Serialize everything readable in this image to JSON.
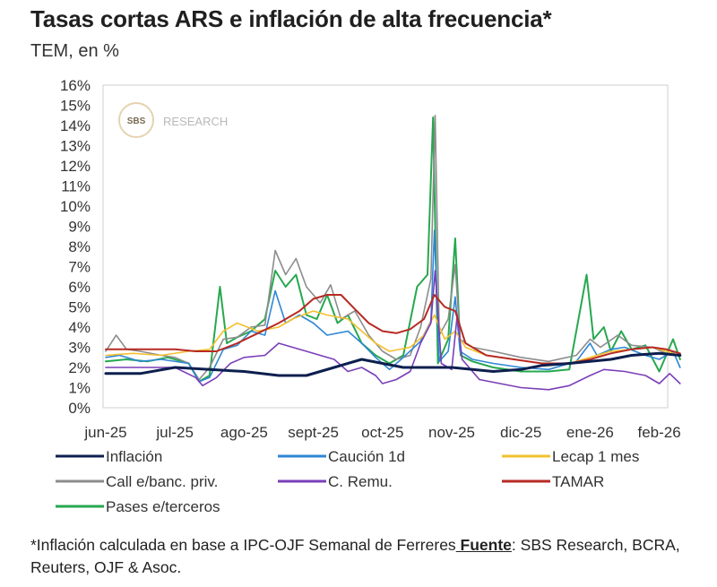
{
  "title": "Tasas cortas ARS e inflación de alta frecuencia*",
  "subtitle": "TEM, en %",
  "watermark": {
    "badge": "SBS",
    "text": "RESEARCH"
  },
  "footnote": {
    "text": "*Inflación calculada en base a IPC-OJF Semanal de Ferreres",
    "fuente_label": " Fuente",
    "sources": ": SBS Research, BCRA, Reuters, OJF & Asoc."
  },
  "chart_data": {
    "type": "line",
    "x_labels": [
      "jun-25",
      "jul-25",
      "ago-25",
      "sept-25",
      "oct-25",
      "nov-25",
      "dic-25",
      "ene-26",
      "feb-26"
    ],
    "y_ticks": [
      "0%",
      "1%",
      "2%",
      "3%",
      "4%",
      "5%",
      "6%",
      "7%",
      "8%",
      "9%",
      "10%",
      "11%",
      "12%",
      "13%",
      "14%",
      "15%",
      "16%"
    ],
    "ylim": [
      0,
      16
    ],
    "grid": false,
    "legend_position": "bottom",
    "series": [
      {
        "name": "Inflación",
        "color": "#0d1f4f",
        "width": 3,
        "points": [
          [
            0,
            1.7
          ],
          [
            0.5,
            1.7
          ],
          [
            1,
            2.0
          ],
          [
            1.5,
            1.9
          ],
          [
            2,
            1.8
          ],
          [
            2.5,
            1.6
          ],
          [
            2.9,
            1.6
          ],
          [
            3.3,
            2.0
          ],
          [
            3.7,
            2.4
          ],
          [
            4.0,
            2.2
          ],
          [
            4.3,
            2.0
          ],
          [
            4.5,
            2.0
          ],
          [
            5,
            2.0
          ],
          [
            5.3,
            1.9
          ],
          [
            5.6,
            1.8
          ],
          [
            6,
            1.9
          ],
          [
            6.3,
            2.1
          ],
          [
            6.7,
            2.2
          ],
          [
            7,
            2.3
          ],
          [
            7.3,
            2.4
          ],
          [
            7.6,
            2.6
          ],
          [
            8,
            2.7
          ],
          [
            8.3,
            2.6
          ]
        ]
      },
      {
        "name": "Caución 1d",
        "color": "#2e86d4",
        "width": 1.6,
        "points": [
          [
            0,
            2.5
          ],
          [
            0.2,
            2.6
          ],
          [
            0.5,
            2.3
          ],
          [
            0.8,
            2.4
          ],
          [
            1.2,
            2.2
          ],
          [
            1.35,
            1.3
          ],
          [
            1.5,
            1.5
          ],
          [
            1.7,
            2.9
          ],
          [
            1.9,
            3.1
          ],
          [
            2.1,
            3.8
          ],
          [
            2.3,
            3.6
          ],
          [
            2.45,
            5.8
          ],
          [
            2.6,
            4.2
          ],
          [
            2.8,
            4.6
          ],
          [
            3.0,
            4.2
          ],
          [
            3.2,
            3.6
          ],
          [
            3.5,
            3.8
          ],
          [
            3.7,
            3.2
          ],
          [
            3.9,
            2.5
          ],
          [
            4.1,
            1.9
          ],
          [
            4.3,
            2.5
          ],
          [
            4.55,
            3.3
          ],
          [
            4.7,
            4.3
          ],
          [
            4.75,
            8.8
          ],
          [
            4.82,
            2.3
          ],
          [
            4.95,
            2.8
          ],
          [
            5.05,
            5.5
          ],
          [
            5.12,
            2.8
          ],
          [
            5.3,
            2.4
          ],
          [
            5.6,
            2.2
          ],
          [
            6.0,
            2.0
          ],
          [
            6.4,
            1.9
          ],
          [
            6.8,
            2.3
          ],
          [
            7.0,
            3.2
          ],
          [
            7.1,
            2.6
          ],
          [
            7.3,
            2.9
          ],
          [
            7.5,
            3.0
          ],
          [
            7.8,
            2.6
          ],
          [
            8.0,
            2.4
          ],
          [
            8.2,
            2.8
          ],
          [
            8.3,
            2.0
          ]
        ]
      },
      {
        "name": "Lecap 1 mes",
        "color": "#f2c12e",
        "width": 1.6,
        "points": [
          [
            0,
            2.6
          ],
          [
            0.4,
            2.7
          ],
          [
            0.8,
            2.6
          ],
          [
            1.2,
            2.8
          ],
          [
            1.5,
            2.9
          ],
          [
            1.7,
            3.8
          ],
          [
            1.9,
            4.2
          ],
          [
            2.2,
            3.8
          ],
          [
            2.5,
            4.0
          ],
          [
            2.7,
            4.4
          ],
          [
            3.0,
            4.8
          ],
          [
            3.2,
            4.6
          ],
          [
            3.5,
            4.4
          ],
          [
            3.7,
            3.8
          ],
          [
            3.9,
            3.2
          ],
          [
            4.1,
            2.8
          ],
          [
            4.4,
            3.0
          ],
          [
            4.6,
            3.6
          ],
          [
            4.75,
            4.6
          ],
          [
            4.9,
            3.4
          ],
          [
            5.05,
            3.8
          ],
          [
            5.2,
            3.0
          ],
          [
            5.5,
            2.6
          ],
          [
            5.9,
            2.4
          ],
          [
            6.3,
            2.2
          ],
          [
            6.7,
            2.2
          ],
          [
            7.0,
            2.5
          ],
          [
            7.3,
            2.8
          ],
          [
            7.6,
            2.9
          ],
          [
            7.9,
            3.0
          ],
          [
            8.1,
            2.8
          ],
          [
            8.3,
            2.6
          ]
        ]
      },
      {
        "name": "Call e/banc. priv.",
        "color": "#8c8c8c",
        "width": 1.6,
        "points": [
          [
            0,
            2.8
          ],
          [
            0.15,
            3.6
          ],
          [
            0.3,
            2.9
          ],
          [
            0.5,
            2.8
          ],
          [
            0.8,
            2.6
          ],
          [
            1.0,
            2.5
          ],
          [
            1.2,
            2.2
          ],
          [
            1.35,
            1.4
          ],
          [
            1.5,
            2.0
          ],
          [
            1.7,
            3.4
          ],
          [
            1.9,
            3.5
          ],
          [
            2.1,
            4.0
          ],
          [
            2.3,
            4.1
          ],
          [
            2.45,
            7.8
          ],
          [
            2.6,
            6.6
          ],
          [
            2.75,
            7.4
          ],
          [
            2.9,
            6.0
          ],
          [
            3.1,
            5.2
          ],
          [
            3.25,
            6.1
          ],
          [
            3.4,
            4.4
          ],
          [
            3.6,
            4.8
          ],
          [
            3.8,
            3.6
          ],
          [
            4.0,
            2.8
          ],
          [
            4.2,
            2.4
          ],
          [
            4.4,
            2.6
          ],
          [
            4.55,
            4.0
          ],
          [
            4.7,
            6.4
          ],
          [
            4.76,
            14.5
          ],
          [
            4.82,
            3.6
          ],
          [
            4.95,
            4.4
          ],
          [
            5.05,
            7.1
          ],
          [
            5.12,
            3.4
          ],
          [
            5.3,
            3.0
          ],
          [
            5.6,
            2.8
          ],
          [
            6.0,
            2.5
          ],
          [
            6.4,
            2.3
          ],
          [
            6.8,
            2.6
          ],
          [
            7.0,
            3.4
          ],
          [
            7.15,
            3.0
          ],
          [
            7.4,
            3.6
          ],
          [
            7.6,
            3.1
          ],
          [
            7.9,
            3.0
          ],
          [
            8.1,
            2.7
          ],
          [
            8.3,
            2.6
          ]
        ]
      },
      {
        "name": "C. Remu.",
        "color": "#7a3fb8",
        "width": 1.6,
        "points": [
          [
            0,
            2.0
          ],
          [
            0.5,
            2.0
          ],
          [
            1.0,
            2.0
          ],
          [
            1.3,
            1.5
          ],
          [
            1.4,
            1.1
          ],
          [
            1.6,
            1.5
          ],
          [
            1.8,
            2.2
          ],
          [
            2.0,
            2.5
          ],
          [
            2.3,
            2.6
          ],
          [
            2.5,
            3.2
          ],
          [
            2.7,
            3.0
          ],
          [
            2.9,
            2.8
          ],
          [
            3.1,
            2.6
          ],
          [
            3.3,
            2.4
          ],
          [
            3.5,
            1.8
          ],
          [
            3.7,
            2.0
          ],
          [
            3.9,
            1.6
          ],
          [
            4.0,
            1.2
          ],
          [
            4.2,
            1.4
          ],
          [
            4.4,
            1.8
          ],
          [
            4.55,
            3.2
          ],
          [
            4.7,
            4.2
          ],
          [
            4.76,
            6.8
          ],
          [
            4.85,
            2.2
          ],
          [
            5.0,
            1.9
          ],
          [
            5.08,
            4.6
          ],
          [
            5.15,
            2.4
          ],
          [
            5.4,
            1.4
          ],
          [
            5.7,
            1.2
          ],
          [
            6.0,
            1.0
          ],
          [
            6.4,
            0.9
          ],
          [
            6.7,
            1.1
          ],
          [
            7.0,
            1.6
          ],
          [
            7.2,
            1.9
          ],
          [
            7.5,
            1.8
          ],
          [
            7.8,
            1.6
          ],
          [
            8.0,
            1.2
          ],
          [
            8.15,
            1.7
          ],
          [
            8.3,
            1.2
          ]
        ]
      },
      {
        "name": "TAMAR",
        "color": "#b72a23",
        "width": 2,
        "points": [
          [
            0,
            2.9
          ],
          [
            0.5,
            2.9
          ],
          [
            1.0,
            2.9
          ],
          [
            1.3,
            2.8
          ],
          [
            1.6,
            2.8
          ],
          [
            1.9,
            3.2
          ],
          [
            2.2,
            3.7
          ],
          [
            2.5,
            4.2
          ],
          [
            2.8,
            4.8
          ],
          [
            3.0,
            5.4
          ],
          [
            3.2,
            5.6
          ],
          [
            3.4,
            5.6
          ],
          [
            3.6,
            4.9
          ],
          [
            3.8,
            4.2
          ],
          [
            4.0,
            3.8
          ],
          [
            4.2,
            3.7
          ],
          [
            4.4,
            3.9
          ],
          [
            4.6,
            4.4
          ],
          [
            4.75,
            5.6
          ],
          [
            4.9,
            5.0
          ],
          [
            5.05,
            4.8
          ],
          [
            5.2,
            3.2
          ],
          [
            5.5,
            2.6
          ],
          [
            5.9,
            2.4
          ],
          [
            6.3,
            2.2
          ],
          [
            6.7,
            2.2
          ],
          [
            7.0,
            2.4
          ],
          [
            7.3,
            2.7
          ],
          [
            7.6,
            2.9
          ],
          [
            7.9,
            3.0
          ],
          [
            8.1,
            2.9
          ],
          [
            8.3,
            2.7
          ]
        ]
      },
      {
        "name": "Pases e/terceros",
        "color": "#27a84f",
        "width": 2,
        "points": [
          [
            0,
            2.3
          ],
          [
            0.3,
            2.4
          ],
          [
            0.6,
            2.3
          ],
          [
            0.9,
            2.5
          ],
          [
            1.2,
            2.2
          ],
          [
            1.35,
            1.3
          ],
          [
            1.5,
            1.6
          ],
          [
            1.65,
            6.0
          ],
          [
            1.75,
            3.2
          ],
          [
            1.9,
            3.5
          ],
          [
            2.1,
            3.8
          ],
          [
            2.3,
            4.4
          ],
          [
            2.45,
            6.8
          ],
          [
            2.6,
            6.0
          ],
          [
            2.75,
            6.6
          ],
          [
            2.9,
            4.6
          ],
          [
            3.05,
            4.4
          ],
          [
            3.2,
            5.6
          ],
          [
            3.35,
            4.2
          ],
          [
            3.5,
            4.6
          ],
          [
            3.7,
            3.2
          ],
          [
            3.9,
            2.6
          ],
          [
            4.1,
            2.2
          ],
          [
            4.3,
            2.6
          ],
          [
            4.5,
            6.0
          ],
          [
            4.65,
            6.6
          ],
          [
            4.73,
            14.4
          ],
          [
            4.8,
            2.2
          ],
          [
            4.95,
            3.4
          ],
          [
            5.05,
            8.4
          ],
          [
            5.13,
            2.6
          ],
          [
            5.3,
            2.3
          ],
          [
            5.6,
            2.0
          ],
          [
            6.0,
            1.8
          ],
          [
            6.4,
            1.8
          ],
          [
            6.7,
            1.9
          ],
          [
            6.95,
            6.6
          ],
          [
            7.05,
            3.4
          ],
          [
            7.2,
            4.0
          ],
          [
            7.3,
            2.8
          ],
          [
            7.45,
            3.8
          ],
          [
            7.6,
            2.9
          ],
          [
            7.8,
            3.1
          ],
          [
            8.0,
            1.8
          ],
          [
            8.2,
            3.4
          ],
          [
            8.3,
            2.4
          ]
        ]
      }
    ]
  }
}
